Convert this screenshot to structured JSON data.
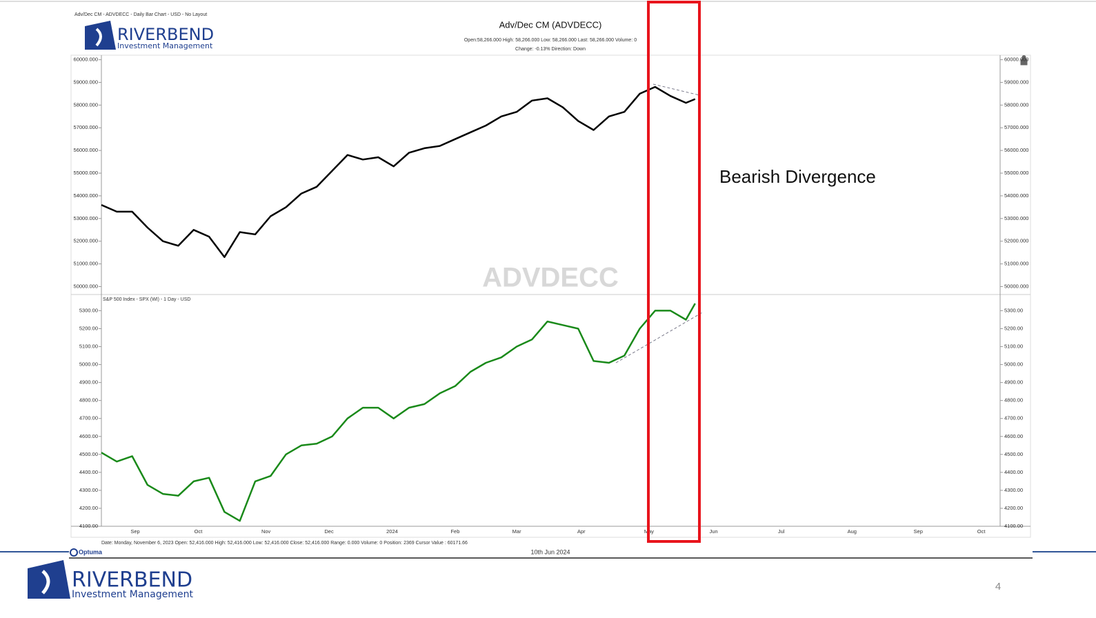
{
  "header": {
    "chart_info": "Adv/Dec CM - ADVDECC - Daily Bar Chart - USD - No Layout",
    "logo_name": "RIVERBEND",
    "logo_sub": "Investment Management",
    "info_line1": "Open:58,266.000   High: 58,266.000   Low: 58,266.000   Last: 58,266.000   Volume: 0",
    "info_line2": "Change: -0.13%   Direction: Down",
    "watermark": "ADVDECC"
  },
  "chart_data": [
    {
      "type": "line",
      "title": "Adv/Dec CM (ADVDECC)",
      "x": [
        0,
        1,
        2,
        3,
        4,
        5,
        6,
        7,
        8,
        9,
        10,
        11,
        12,
        13,
        14,
        15,
        16,
        17,
        18,
        19,
        20,
        21,
        22,
        23,
        24,
        25,
        26,
        27,
        28,
        29,
        30,
        31,
        32,
        33,
        34,
        35,
        36,
        37,
        38,
        38.6
      ],
      "series": [
        {
          "name": "ADVDECC",
          "color": "#000000",
          "values": [
            53600,
            53300,
            53300,
            52600,
            52000,
            51800,
            52500,
            52200,
            51300,
            52400,
            52300,
            53100,
            53500,
            54100,
            54400,
            55100,
            55800,
            55600,
            55700,
            55300,
            55900,
            56100,
            56200,
            56500,
            56800,
            57100,
            57500,
            57700,
            58200,
            58300,
            57900,
            57300,
            56900,
            57500,
            57700,
            58500,
            58800,
            58400,
            58100,
            58266
          ]
        }
      ],
      "xlim": [
        0,
        60.4
      ],
      "ylim": [
        49650,
        60200
      ],
      "yticks": [
        {
          "value": 50000,
          "label": "50000.000"
        },
        {
          "value": 51000,
          "label": "51000.000"
        },
        {
          "value": 52000,
          "label": "52000.000"
        },
        {
          "value": 53000,
          "label": "53000.000"
        },
        {
          "value": 54000,
          "label": "54000.000"
        },
        {
          "value": 55000,
          "label": "55000.000"
        },
        {
          "value": 56000,
          "label": "56000.000"
        },
        {
          "value": 57000,
          "label": "57000.000"
        },
        {
          "value": 58000,
          "label": "58000.000"
        },
        {
          "value": 59000,
          "label": "59000.000"
        },
        {
          "value": 60000,
          "label": "60000.000"
        }
      ]
    },
    {
      "type": "line",
      "title": "S&P 500 Index - SPX (WI) - 1 Day - USD",
      "x": [
        0,
        1,
        2,
        3,
        4,
        5,
        6,
        7,
        8,
        9,
        10,
        11,
        12,
        13,
        14,
        15,
        16,
        17,
        18,
        19,
        20,
        21,
        22,
        23,
        24,
        25,
        26,
        27,
        28,
        29,
        30,
        31,
        32,
        33,
        34,
        35,
        36,
        37,
        38,
        38.6
      ],
      "series": [
        {
          "name": "SPX",
          "color": "#1a8a1a",
          "values": [
            4510,
            4460,
            4490,
            4330,
            4280,
            4270,
            4350,
            4370,
            4180,
            4130,
            4350,
            4380,
            4500,
            4550,
            4560,
            4600,
            4700,
            4760,
            4760,
            4700,
            4760,
            4780,
            4840,
            4880,
            4960,
            5010,
            5040,
            5100,
            5140,
            5240,
            5220,
            5200,
            5020,
            5010,
            5050,
            5200,
            5300,
            5300,
            5250,
            5340
          ]
        }
      ],
      "xlim": [
        0,
        60.4
      ],
      "ylim": [
        4100,
        5390
      ],
      "yticks": [
        {
          "value": 4100,
          "label": "4100.00"
        },
        {
          "value": 4200,
          "label": "4200.00"
        },
        {
          "value": 4300,
          "label": "4300.00"
        },
        {
          "value": 4400,
          "label": "4400.00"
        },
        {
          "value": 4500,
          "label": "4500.00"
        },
        {
          "value": 4600,
          "label": "4600.00"
        },
        {
          "value": 4700,
          "label": "4700.00"
        },
        {
          "value": 4800,
          "label": "4800.00"
        },
        {
          "value": 4900,
          "label": "4900.00"
        },
        {
          "value": 5000,
          "label": "5000.00"
        },
        {
          "value": 5100,
          "label": "5100.00"
        },
        {
          "value": 5200,
          "label": "5200.00"
        },
        {
          "value": 5300,
          "label": "5300.00"
        }
      ],
      "xticks": [
        {
          "value": 2.2,
          "label": "Sep"
        },
        {
          "value": 6.3,
          "label": "Oct"
        },
        {
          "value": 10.7,
          "label": "Nov"
        },
        {
          "value": 14.8,
          "label": "Dec"
        },
        {
          "value": 18.9,
          "label": "2024"
        },
        {
          "value": 23.0,
          "label": "Feb"
        },
        {
          "value": 27.0,
          "label": "Mar"
        },
        {
          "value": 31.2,
          "label": "Apr"
        },
        {
          "value": 35.6,
          "label": "May"
        },
        {
          "value": 39.8,
          "label": "Jun"
        },
        {
          "value": 44.2,
          "label": "Jul"
        },
        {
          "value": 48.8,
          "label": "Aug"
        },
        {
          "value": 53.1,
          "label": "Sep"
        },
        {
          "value": 57.2,
          "label": "Oct"
        }
      ]
    }
  ],
  "annotation": "Bearish Divergence",
  "footer": {
    "status": "Date: Monday, November 6, 2023 Open: 52,416.000 High: 52,416.000 Low: 52,416.000 Close: 52,416.000 Range: 0.000 Volume: 0 Position: 2369 Cursor Value : 60171.66",
    "optuma": "Optuma",
    "date": "10th Jun 2024",
    "logo_name": "RIVERBEND",
    "logo_sub": "Investment Management",
    "page_number": "4"
  }
}
